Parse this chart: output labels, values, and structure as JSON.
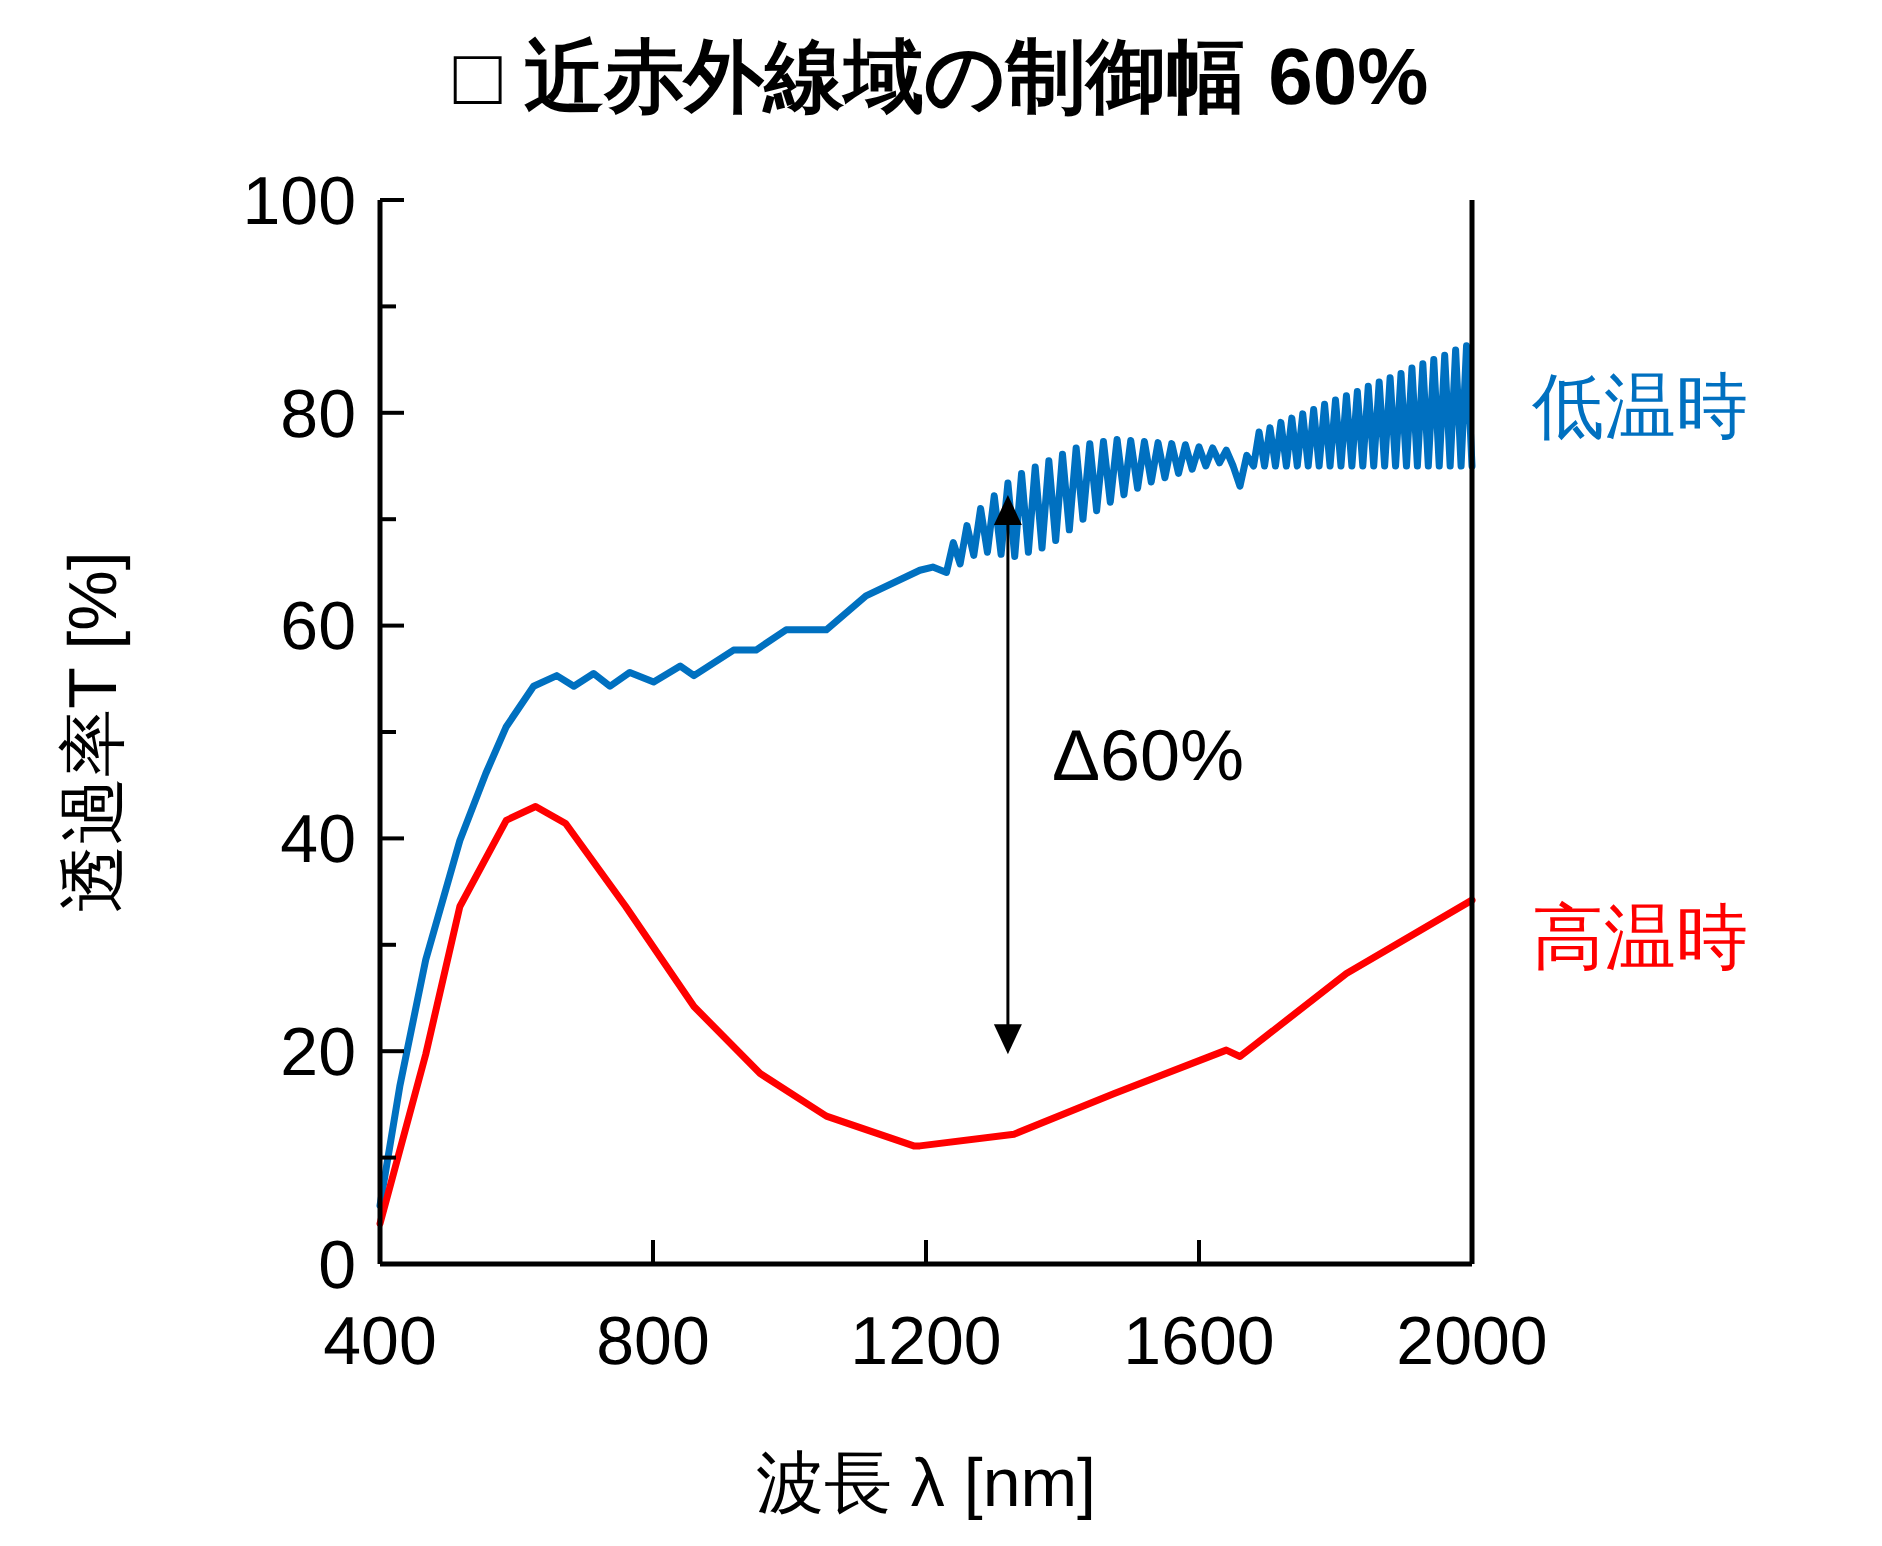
{
  "chart_data": {
    "type": "line",
    "title": "□ 近赤外線域の制御幅 60%",
    "xlabel": "波長 λ [nm]",
    "ylabel": "透過率T [%]",
    "xlim": [
      400,
      2000
    ],
    "xticks": [
      400,
      800,
      1200,
      1600,
      2000
    ],
    "ylim": [
      0,
      100
    ],
    "yticks": [
      0,
      {
        "value": 10,
        "label": null
      },
      20,
      {
        "value": 30,
        "label": null
      },
      40,
      {
        "value": 50,
        "label": null
      },
      60,
      {
        "value": 70,
        "label": null
      },
      80,
      {
        "value": 90,
        "label": null
      },
      100
    ],
    "grid": false,
    "marker": "none",
    "line_style": "solid",
    "annotations": [
      "Δ60%"
    ],
    "series": [
      {
        "name": "低温時",
        "color": "#0070c0",
        "x": [
          400,
          429,
          467,
          517,
          555,
          585,
          625,
          659,
          684,
          713,
          737,
          766,
          801,
          840,
          860,
          918,
          951,
          995,
          1054,
          1112,
          1191,
          1210,
          1230,
          1240,
          1250,
          1260,
          1270,
          1280,
          1290,
          1300,
          1310,
          1320,
          1330,
          1340,
          1350,
          1360,
          1370,
          1380,
          1390,
          1400,
          1410,
          1420,
          1430,
          1440,
          1450,
          1460,
          1470,
          1480,
          1490,
          1500,
          1510,
          1520,
          1530,
          1540,
          1550,
          1560,
          1570,
          1580,
          1590,
          1600,
          1610,
          1620,
          1630,
          1640,
          1650,
          1660,
          1670,
          1680,
          1688,
          1696,
          1704,
          1712,
          1720,
          1728,
          1736,
          1744,
          1752,
          1760,
          1768,
          1776,
          1784,
          1792,
          1800,
          1808,
          1816,
          1824,
          1832,
          1840,
          1848,
          1856,
          1864,
          1872,
          1880,
          1888,
          1896,
          1904,
          1912,
          1920,
          1928,
          1936,
          1944,
          1952,
          1960,
          1968,
          1976,
          1984,
          1992,
          2000
        ],
        "values": [
          5.5,
          16.7,
          28.6,
          39.8,
          46.1,
          50.5,
          54.3,
          55.3,
          54.3,
          55.5,
          54.3,
          55.6,
          54.7,
          56.2,
          55.3,
          57.7,
          57.7,
          59.6,
          59.6,
          62.8,
          65.2,
          65.5,
          65,
          67.8,
          65.8,
          69.4,
          66.6,
          71,
          66.9,
          72.2,
          66.7,
          73.4,
          66.5,
          74.3,
          66.9,
          74.9,
          67.3,
          75.5,
          68,
          76.1,
          69,
          76.7,
          70,
          77.1,
          70.8,
          77.3,
          71.6,
          77.5,
          72.3,
          77.4,
          72.9,
          77.3,
          73.5,
          77.2,
          73.9,
          77.1,
          74.3,
          77,
          74.7,
          76.8,
          75,
          76.7,
          75.3,
          76.5,
          75,
          73.1,
          76,
          75,
          78.2,
          75,
          78.6,
          75,
          79.1,
          75,
          79.5,
          75,
          79.9,
          75,
          80.3,
          75,
          80.8,
          75,
          81.2,
          75,
          81.6,
          75,
          82,
          75,
          82.5,
          75,
          82.9,
          75,
          83.3,
          75,
          83.7,
          75,
          84.2,
          75,
          84.6,
          75,
          85,
          75,
          85.4,
          75,
          85.9,
          75,
          86.3,
          75
        ]
      },
      {
        "name": "高温時",
        "color": "#ff0000",
        "x": [
          400,
          467,
          517,
          585,
          628,
          672,
          760,
          860,
          957,
          1054,
          1182,
          1191,
          1329,
          1475,
          1640,
          1660,
          1816,
          2000
        ],
        "values": [
          3.8,
          19.7,
          33.6,
          41.7,
          43,
          41.4,
          33.6,
          24.2,
          17.9,
          13.9,
          11.1,
          11.1,
          12.2,
          16,
          20.1,
          19.5,
          27.3,
          34.2
        ]
      }
    ]
  }
}
